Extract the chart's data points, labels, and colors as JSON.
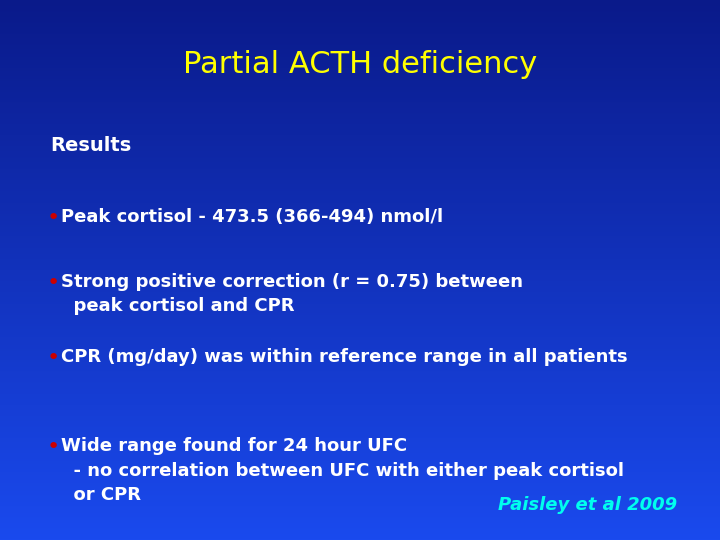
{
  "title": "Partial ACTH deficiency",
  "title_color": "#FFFF00",
  "title_fontsize": 22,
  "background_top": "#0a1a8a",
  "background_bottom": "#1a4aee",
  "results_label": "Results",
  "results_color": "#FFFFFF",
  "results_fontsize": 14,
  "bullet_color": "#CC0000",
  "bullet_text_color": "#FFFFFF",
  "bullet_fontsize": 13,
  "bullets": [
    "Peak cortisol - 473.5 (366-494) nmol/l",
    "Strong positive correction (r = 0.75) between\n  peak cortisol and CPR",
    "CPR (mg/day) was within reference range in all patients",
    "Wide range found for 24 hour UFC\n  - no correlation between UFC with either peak cortisol\n  or CPR"
  ],
  "citation": "Paisley et al 2009",
  "citation_color": "#00FFEE",
  "citation_fontsize": 13
}
